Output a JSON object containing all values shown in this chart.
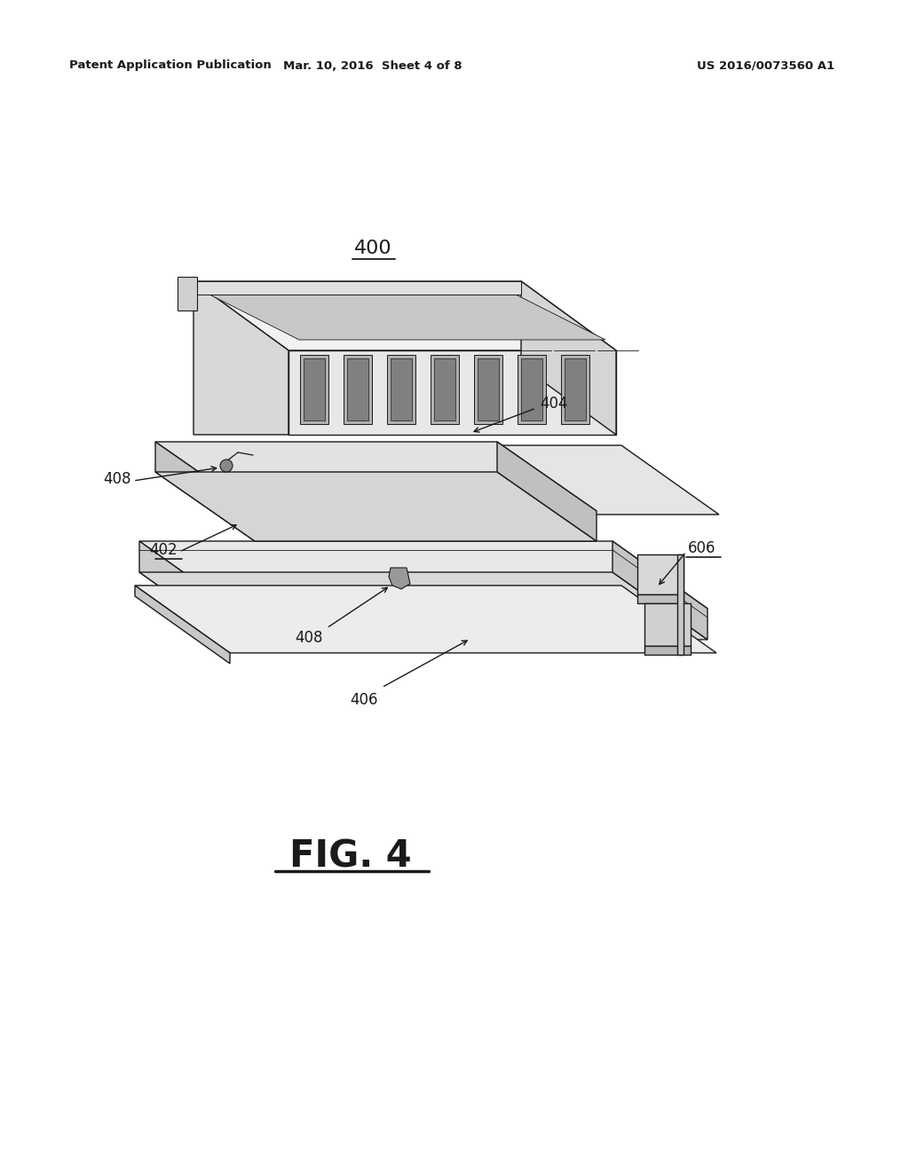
{
  "bg_color": "#ffffff",
  "line_color": "#1a1a1a",
  "header_left": "Patent Application Publication",
  "header_center": "Mar. 10, 2016  Sheet 4 of 8",
  "header_right": "US 2016/0073560 A1",
  "fig_label": "FIG. 4",
  "label_400": "400",
  "label_402": "402",
  "label_404": "404",
  "label_406": "406",
  "label_408a": "408",
  "label_408b": "408",
  "label_606": "606",
  "face_top_color": "#f0f0f0",
  "face_front_color": "#e0e0e0",
  "face_side_color": "#d0d0d0",
  "face_dark_color": "#c0c0c0",
  "slot_color": "#a0a0a0",
  "lw_main": 1.0,
  "lw_detail": 0.7
}
